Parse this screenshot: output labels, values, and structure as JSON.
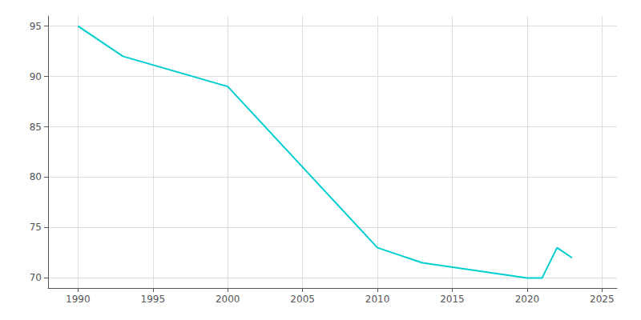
{
  "chart_data": {
    "type": "line",
    "x": [
      1990,
      1993,
      2000,
      2010,
      2013,
      2020,
      2021,
      2022,
      2023
    ],
    "values": [
      95,
      92,
      89,
      73,
      71.5,
      70,
      70,
      73,
      72
    ],
    "color": "#00CED1",
    "xlim": [
      1988,
      2026
    ],
    "xticks": [
      1990,
      1995,
      2000,
      2005,
      2010,
      2015,
      2020,
      2025
    ],
    "ylim": [
      69,
      96
    ],
    "yticks": [
      70,
      75,
      80,
      85,
      90,
      95
    ],
    "grid": true
  }
}
